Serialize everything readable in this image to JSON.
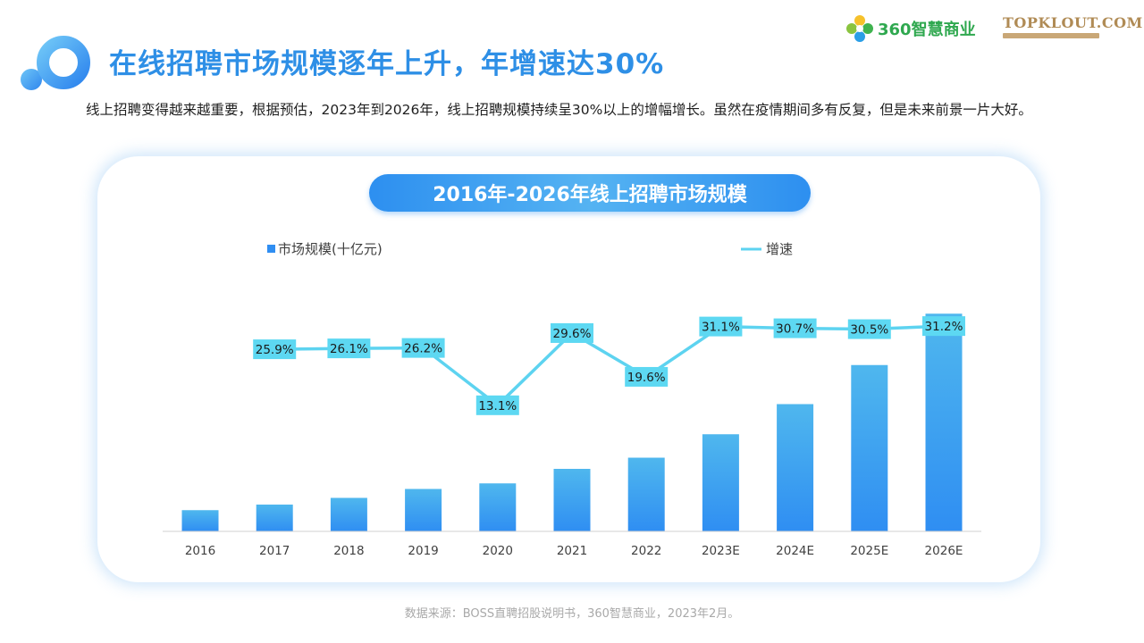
{
  "header": {
    "title": "在线招聘市场规模逐年上升，年增速达30%",
    "brand_360": "360智慧商业",
    "brand_topklout": "TOPKLOUT.COM"
  },
  "subtitle": "线上招聘变得越来越重要，根据预估，2023年到2026年，线上招聘规模持续呈30%以上的增幅增长。虽然在疫情期间多有反复，但是未来前景一片大好。",
  "source_note": "数据来源：BOSS直聘招股说明书，360智慧商业，2023年2月。",
  "colors": {
    "accent": "#2e8fe6",
    "bar_top": "#4fb7ee",
    "bar_bottom": "#2f8ef2",
    "line": "#5dd3f0",
    "label_box": "#5dd8f2"
  },
  "chart_data": {
    "type": "bar+line",
    "title": "2016年-2026年线上招聘市场规模",
    "categories": [
      "2016",
      "2017",
      "2018",
      "2019",
      "2020",
      "2021",
      "2022",
      "2023E",
      "2024E",
      "2025E",
      "2026E"
    ],
    "series": [
      {
        "name": "市场规模(十亿元)",
        "type": "bar",
        "values": [
          19,
          24,
          30,
          38,
          43,
          56,
          66,
          87,
          114,
          149,
          195
        ]
      },
      {
        "name": "增速",
        "type": "line",
        "values": [
          null,
          25.9,
          26.1,
          26.2,
          13.1,
          29.6,
          19.6,
          31.1,
          30.7,
          30.5,
          31.2
        ],
        "labels": [
          null,
          "25.9%",
          "26.1%",
          "26.2%",
          "13.1%",
          "29.6%",
          "19.6%",
          "31.1%",
          "30.7%",
          "30.5%",
          "31.2%"
        ]
      }
    ],
    "legend_placement": "top",
    "grid": false
  }
}
